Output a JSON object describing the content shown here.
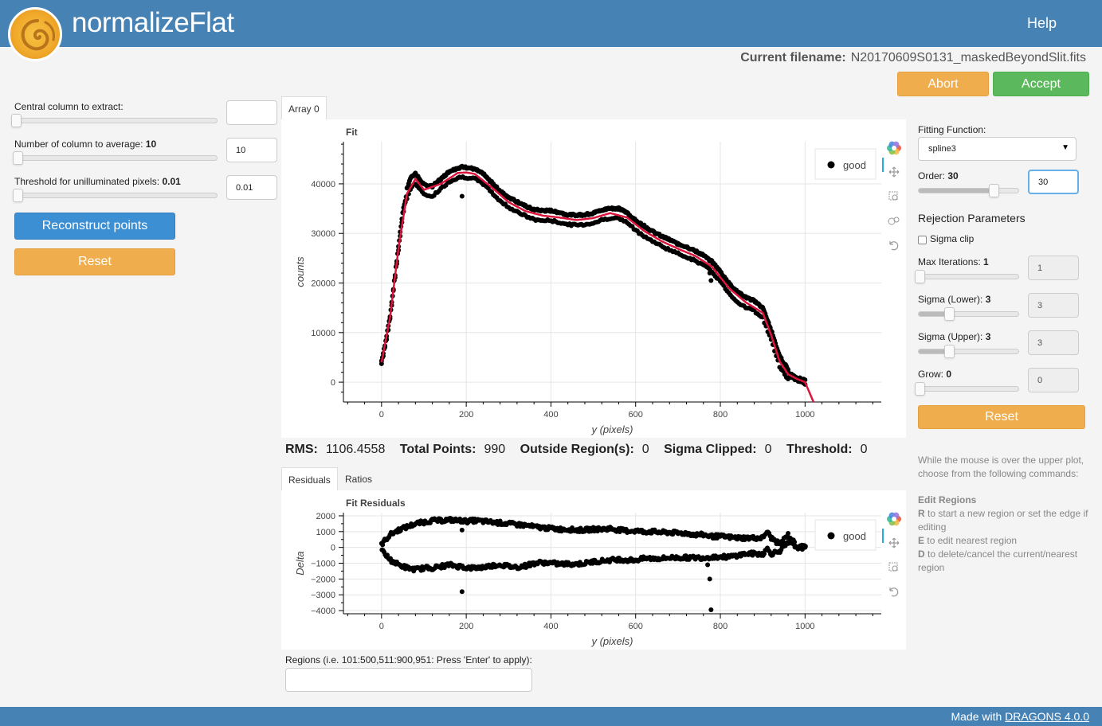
{
  "header": {
    "title": "normalizeFlat",
    "help": "Help"
  },
  "file": {
    "label": "Current filename:",
    "name": "N20170609S0131_maskedBeyondSlit.fits"
  },
  "actions": {
    "abort": "Abort",
    "accept": "Accept"
  },
  "left_panel": {
    "central_column_label": "Central column to extract:",
    "central_column_value": "",
    "num_columns_label": "Number of column to average:",
    "num_columns_bold": "10",
    "num_columns_value": "10",
    "threshold_label": "Threshold for unilluminated pixels:",
    "threshold_bold": "0.01",
    "threshold_value": "0.01",
    "reconstruct_button": "Reconstruct points",
    "reset_button": "Reset"
  },
  "tabs": {
    "array": "Array 0",
    "residuals": "Residuals",
    "ratios": "Ratios"
  },
  "fit_plot": {
    "title": "Fit",
    "xlabel": "y (pixels)",
    "ylabel": "counts",
    "legend": "good",
    "xticks": [
      "0",
      "200",
      "400",
      "600",
      "800",
      "1000"
    ],
    "yticks": [
      "0",
      "10000",
      "20000",
      "30000",
      "40000"
    ]
  },
  "residual_plot": {
    "title": "Fit Residuals",
    "xlabel": "y (pixels)",
    "ylabel": "Delta",
    "legend": "good",
    "xticks": [
      "0",
      "200",
      "400",
      "600",
      "800",
      "1000"
    ],
    "yticks": [
      "2000",
      "1000",
      "0",
      "−1000",
      "−2000",
      "−3000",
      "−4000"
    ]
  },
  "stats": {
    "rms_label": "RMS:",
    "rms": "1106.4558",
    "total_label": "Total Points:",
    "total": "990",
    "outside_label": "Outside Region(s):",
    "outside": "0",
    "sigma_label": "Sigma Clipped:",
    "sigma": "0",
    "threshold_label": "Threshold:",
    "threshold": "0"
  },
  "regions": {
    "label": "Regions (i.e. 101:500,511:900,951: Press 'Enter' to apply):",
    "value": ""
  },
  "right_panel": {
    "fitting_function_label": "Fitting Function:",
    "fitting_function": "spline3",
    "order_label": "Order:",
    "order_bold": "30",
    "order_value": "30",
    "rejection_title": "Rejection Parameters",
    "sigma_clip_label": "Sigma clip",
    "max_iter_label": "Max Iterations:",
    "max_iter_bold": "1",
    "max_iter_value": "1",
    "sigma_lower_label": "Sigma (Lower):",
    "sigma_lower_bold": "3",
    "sigma_lower_value": "3",
    "sigma_upper_label": "Sigma (Upper):",
    "sigma_upper_bold": "3",
    "sigma_upper_value": "3",
    "grow_label": "Grow:",
    "grow_bold": "0",
    "grow_value": "0",
    "reset_button": "Reset"
  },
  "help": {
    "intro": "While the mouse is over the upper plot, choose from the following commands:",
    "edit_title": "Edit Regions",
    "r_key": "R",
    "r_text": "to start a new region or set the edge if editing",
    "e_key": "E",
    "e_text": "to edit nearest region",
    "d_key": "D",
    "d_text": "to delete/cancel the current/nearest region"
  },
  "footer": {
    "made_with": "Made with",
    "link": "DRAGONS 4.0.0"
  },
  "colors": {
    "header": "#4682b4",
    "orange": "#f0ad4e",
    "green": "#5cb85c",
    "blue": "#3d8fd4",
    "fit_line": "#dc143c"
  },
  "chart_data": [
    {
      "type": "scatter",
      "title": "Fit",
      "xlabel": "y (pixels)",
      "ylabel": "counts",
      "xlim": [
        -90,
        1180
      ],
      "ylim": [
        -4000,
        48500
      ],
      "series": [
        {
          "name": "good",
          "x": [
            0,
            10,
            20,
            30,
            40,
            50,
            60,
            70,
            80,
            90,
            100,
            120,
            140,
            160,
            180,
            190,
            200,
            220,
            240,
            260,
            280,
            300,
            320,
            340,
            360,
            380,
            400,
            420,
            440,
            460,
            480,
            500,
            520,
            540,
            560,
            580,
            600,
            620,
            640,
            660,
            680,
            700,
            720,
            740,
            760,
            780,
            800,
            820,
            840,
            860,
            880,
            900,
            920,
            940,
            960,
            980,
            1000
          ],
          "y": [
            4000,
            8000,
            13000,
            20000,
            27000,
            34000,
            38000,
            40500,
            41000,
            40000,
            38800,
            38500,
            40000,
            41500,
            42200,
            42400,
            42300,
            42000,
            41000,
            39300,
            37500,
            36300,
            35400,
            34500,
            33800,
            33600,
            33600,
            33200,
            32800,
            32700,
            32800,
            33100,
            33700,
            34100,
            34000,
            33200,
            31600,
            30500,
            29400,
            28500,
            27700,
            26900,
            26300,
            25500,
            24600,
            23300,
            21300,
            19000,
            17200,
            16100,
            15400,
            14000,
            9500,
            4200,
            1600,
            700,
            0
          ]
        },
        {
          "name": "fit",
          "x": [
            0,
            20,
            40,
            60,
            80,
            100,
            140,
            180,
            200,
            220,
            260,
            300,
            340,
            380,
            420,
            460,
            500,
            540,
            580,
            620,
            660,
            700,
            740,
            780,
            820,
            860,
            900,
            920,
            940,
            960,
            980,
            1000,
            1020
          ],
          "y": [
            4000,
            13000,
            27000,
            38000,
            41000,
            38800,
            40000,
            42200,
            42300,
            42000,
            39300,
            36300,
            34500,
            33600,
            33200,
            32700,
            33100,
            34100,
            33200,
            30500,
            28500,
            26900,
            25500,
            23300,
            19000,
            16100,
            14000,
            9500,
            4200,
            1600,
            700,
            0,
            -4000
          ]
        }
      ]
    },
    {
      "type": "scatter",
      "title": "Fit Residuals",
      "xlabel": "y (pixels)",
      "ylabel": "Delta",
      "xlim": [
        -90,
        1180
      ],
      "ylim": [
        -4200,
        2200
      ],
      "series": [
        {
          "name": "good",
          "x": [
            0,
            10,
            20,
            40,
            60,
            80,
            100,
            120,
            140,
            160,
            180,
            190,
            200,
            220,
            240,
            260,
            280,
            300,
            320,
            340,
            360,
            380,
            400,
            420,
            440,
            460,
            480,
            500,
            520,
            540,
            560,
            580,
            600,
            620,
            640,
            660,
            680,
            700,
            720,
            740,
            760,
            780,
            800,
            820,
            840,
            860,
            880,
            900,
            910,
            920,
            940,
            960,
            980,
            1000
          ],
          "y": [
            200,
            500,
            800,
            1100,
            1300,
            1500,
            1600,
            1700,
            1700,
            1750,
            1700,
            1700,
            1650,
            1700,
            1650,
            1600,
            1550,
            1500,
            1450,
            1400,
            1300,
            1250,
            1200,
            1150,
            1150,
            1100,
            1100,
            1150,
            1150,
            1200,
            1100,
            1050,
            1050,
            1000,
            1000,
            950,
            950,
            900,
            900,
            800,
            800,
            700,
            700,
            650,
            600,
            600,
            600,
            600,
            1000,
            600,
            200,
            800,
            100,
            0
          ],
          "lower": [
            -200,
            -500,
            -800,
            -1100,
            -1300,
            -1400,
            -1300,
            -1300,
            -1200,
            -1100,
            -1200,
            -1200,
            -1300,
            -1300,
            -1250,
            -1150,
            -1100,
            -1200,
            -1250,
            -1150,
            -1000,
            -950,
            -1000,
            -1050,
            -1050,
            -1050,
            -1000,
            -900,
            -850,
            -800,
            -750,
            -800,
            -800,
            -700,
            -700,
            -700,
            -650,
            -650,
            -650,
            -650,
            -650,
            -600,
            -600,
            -600,
            -500,
            -400,
            -400,
            -400,
            -100,
            -400,
            -200,
            300,
            0,
            0
          ]
        }
      ]
    }
  ]
}
